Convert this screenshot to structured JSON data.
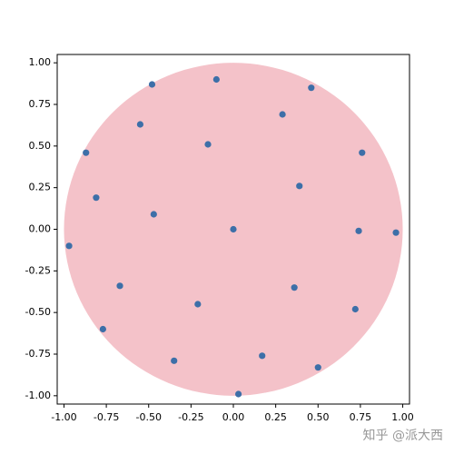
{
  "chart_data": {
    "type": "scatter",
    "x": [
      -0.48,
      -0.1,
      0.46,
      0.29,
      -0.55,
      -0.87,
      -0.15,
      0.76,
      -0.81,
      0.39,
      -0.47,
      0.0,
      0.74,
      0.96,
      -0.97,
      -0.67,
      0.36,
      -0.21,
      0.72,
      -0.77,
      -0.35,
      0.17,
      0.5,
      0.03
    ],
    "values": [
      0.87,
      0.9,
      0.85,
      0.69,
      0.63,
      0.46,
      0.51,
      0.46,
      0.19,
      0.26,
      0.09,
      0.0,
      -0.01,
      -0.02,
      -0.1,
      -0.34,
      -0.35,
      -0.45,
      -0.48,
      -0.6,
      -0.79,
      -0.76,
      -0.83,
      -0.99
    ],
    "color": "#3d6fa8",
    "circle": {
      "center": [
        0,
        0
      ],
      "radius": 1,
      "color": "#f4c2c9"
    },
    "xlim": [
      -1.04,
      1.04
    ],
    "ylim": [
      -1.05,
      1.05
    ],
    "xticks": [
      {
        "value": -1,
        "label": "-1.00"
      },
      {
        "value": -0.75,
        "label": "-0.75"
      },
      {
        "value": -0.5,
        "label": "-0.50"
      },
      {
        "value": -0.25,
        "label": "-0.25"
      },
      {
        "value": 0,
        "label": "0.00"
      },
      {
        "value": 0.25,
        "label": "0.25"
      },
      {
        "value": 0.5,
        "label": "0.50"
      },
      {
        "value": 0.75,
        "label": "0.75"
      },
      {
        "value": 1,
        "label": "1.00"
      }
    ],
    "yticks": [
      {
        "value": -1,
        "label": "-1.00"
      },
      {
        "value": -0.75,
        "label": "-0.75"
      },
      {
        "value": -0.5,
        "label": "-0.50"
      },
      {
        "value": -0.25,
        "label": "-0.25"
      },
      {
        "value": 0,
        "label": "0.00"
      },
      {
        "value": 0.25,
        "label": "0.25"
      },
      {
        "value": 0.5,
        "label": "0.50"
      },
      {
        "value": 0.75,
        "label": "0.75"
      },
      {
        "value": 1,
        "label": "1.00"
      }
    ],
    "grid": false,
    "watermark": "知乎 @派大西"
  }
}
